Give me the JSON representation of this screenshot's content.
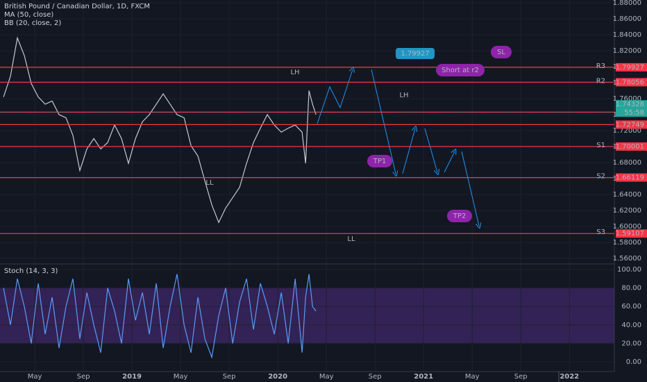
{
  "chart_data": [
    {
      "type": "line",
      "title": "British Pound / Canadian Dollar, 1D, FXCM",
      "indicators": [
        "MA (50, close)",
        "BB (20, close, 2)"
      ],
      "x": [
        1.43,
        2.0,
        2.57,
        3.14,
        3.71,
        4.29,
        4.86,
        5.43,
        6.0,
        6.57,
        7.14,
        7.71,
        8.29,
        8.86,
        9.43,
        10.0,
        10.57,
        11.14,
        11.71,
        12.29,
        12.86,
        13.43,
        14.0,
        14.57,
        15.14,
        15.71,
        16.29,
        16.86,
        17.43,
        18.0,
        18.57,
        19.14,
        19.71,
        20.29,
        20.86,
        21.43,
        22.0,
        22.57,
        23.14,
        23.71,
        24.29,
        24.86,
        25.43,
        26.0,
        26.29,
        26.57,
        26.86,
        27.14
      ],
      "series": [
        {
          "color": "#c7c9cf",
          "values": [
            1.762,
            1.788,
            1.836,
            1.814,
            1.779,
            1.762,
            1.753,
            1.757,
            1.74,
            1.736,
            1.714,
            1.67,
            1.697,
            1.71,
            1.697,
            1.705,
            1.727,
            1.71,
            1.679,
            1.71,
            1.731,
            1.74,
            1.753,
            1.766,
            1.753,
            1.74,
            1.736,
            1.701,
            1.688,
            1.657,
            1.627,
            1.605,
            1.623,
            1.636,
            1.649,
            1.679,
            1.705,
            1.723,
            1.74,
            1.727,
            1.718,
            1.723,
            1.727,
            1.718,
            1.679,
            1.77,
            1.753,
            1.74
          ]
        }
      ],
      "xlim": [
        1.14,
        51.7
      ],
      "xticks": [
        {
          "value": 4,
          "label": "May"
        },
        {
          "value": 8,
          "label": "Sep"
        },
        {
          "value": 12,
          "label": "2019"
        },
        {
          "value": 16,
          "label": "May"
        },
        {
          "value": 20,
          "label": "Sep"
        },
        {
          "value": 24,
          "label": "2020"
        },
        {
          "value": 28,
          "label": "May"
        },
        {
          "value": 32,
          "label": "Sep"
        },
        {
          "value": 36,
          "label": "2021"
        },
        {
          "value": 40,
          "label": "May"
        },
        {
          "value": 44,
          "label": "Sep"
        },
        {
          "value": 48,
          "label": "2022"
        }
      ],
      "ylim": [
        1.553,
        1.8835
      ],
      "yticks": [
        {
          "value": 1.56,
          "label": "1.56000"
        },
        {
          "value": 1.58,
          "label": "1.58000"
        },
        {
          "value": 1.6,
          "label": "1.60000"
        },
        {
          "value": 1.62,
          "label": "1.62000"
        },
        {
          "value": 1.64,
          "label": "1.64000"
        },
        {
          "value": 1.66,
          "label": "1.66000"
        },
        {
          "value": 1.68,
          "label": "1.68000"
        },
        {
          "value": 1.7,
          "label": "1.70000"
        },
        {
          "value": 1.72,
          "label": "1.72000"
        },
        {
          "value": 1.74,
          "label": "1.74000"
        },
        {
          "value": 1.76,
          "label": "1.76000"
        },
        {
          "value": 1.78,
          "label": "1.78000"
        },
        {
          "value": 1.8,
          "label": "1.80000"
        },
        {
          "value": 1.82,
          "label": "1.82000"
        },
        {
          "value": 1.84,
          "label": "1.84000"
        },
        {
          "value": 1.86,
          "label": "1.86000"
        },
        {
          "value": 1.88,
          "label": "1.88000"
        }
      ],
      "grid": true,
      "levels": [
        {
          "name": "R3",
          "value": 1.79927
        },
        {
          "name": "R2",
          "value": 1.78056
        },
        {
          "value": 1.74304
        },
        {
          "value": 1.72749
        },
        {
          "name": "S1",
          "value": 1.70001
        },
        {
          "name": "S2",
          "value": 1.66119
        },
        {
          "name": "S3",
          "value": 1.59107
        }
      ],
      "level_color": "#f23645",
      "current_price": 1.74328,
      "current_color": "#26a69a",
      "countdown": "55:58",
      "annotations": [
        {
          "text": "LH",
          "color": "#f7a072"
        },
        {
          "text": "LH",
          "color": "#f7a072"
        },
        {
          "text": "LL",
          "color": "#f7a072"
        },
        {
          "text": "LL",
          "color": "#f7a072"
        }
      ],
      "callouts": [
        {
          "text": "1.79927",
          "color": "#2196c4"
        },
        {
          "text": "SL",
          "color": "#8e24aa"
        },
        {
          "text": "Short at r2",
          "color": "#8e24aa"
        },
        {
          "text": "TP1",
          "color": "#8e24aa"
        },
        {
          "text": "TP2",
          "color": "#8e24aa"
        }
      ]
    },
    {
      "type": "line",
      "title": "Stoch (14, 3, 3)",
      "series": [
        {
          "color": "#5b9cf6",
          "values": [
            80,
            40,
            90,
            60,
            20,
            85,
            30,
            70,
            15,
            60,
            90,
            25,
            75,
            40,
            10,
            80,
            55,
            20,
            90,
            45,
            75,
            30,
            85,
            15,
            60,
            95,
            40,
            10,
            70,
            25,
            5,
            50,
            80,
            20,
            65,
            90,
            35,
            85,
            60,
            30,
            75,
            20,
            90,
            10,
            70,
            95,
            60,
            55
          ]
        }
      ],
      "ylim": [
        -10.5,
        106
      ],
      "yticks": [
        {
          "value": 0,
          "label": "0.00"
        },
        {
          "value": 20,
          "label": "20.00"
        },
        {
          "value": 40,
          "label": "40.00"
        },
        {
          "value": 60,
          "label": "60.00"
        },
        {
          "value": 80,
          "label": "80.00"
        },
        {
          "value": 100,
          "label": "100.00"
        }
      ],
      "band": [
        20,
        80
      ],
      "band_color": "#4a2a7a"
    }
  ]
}
